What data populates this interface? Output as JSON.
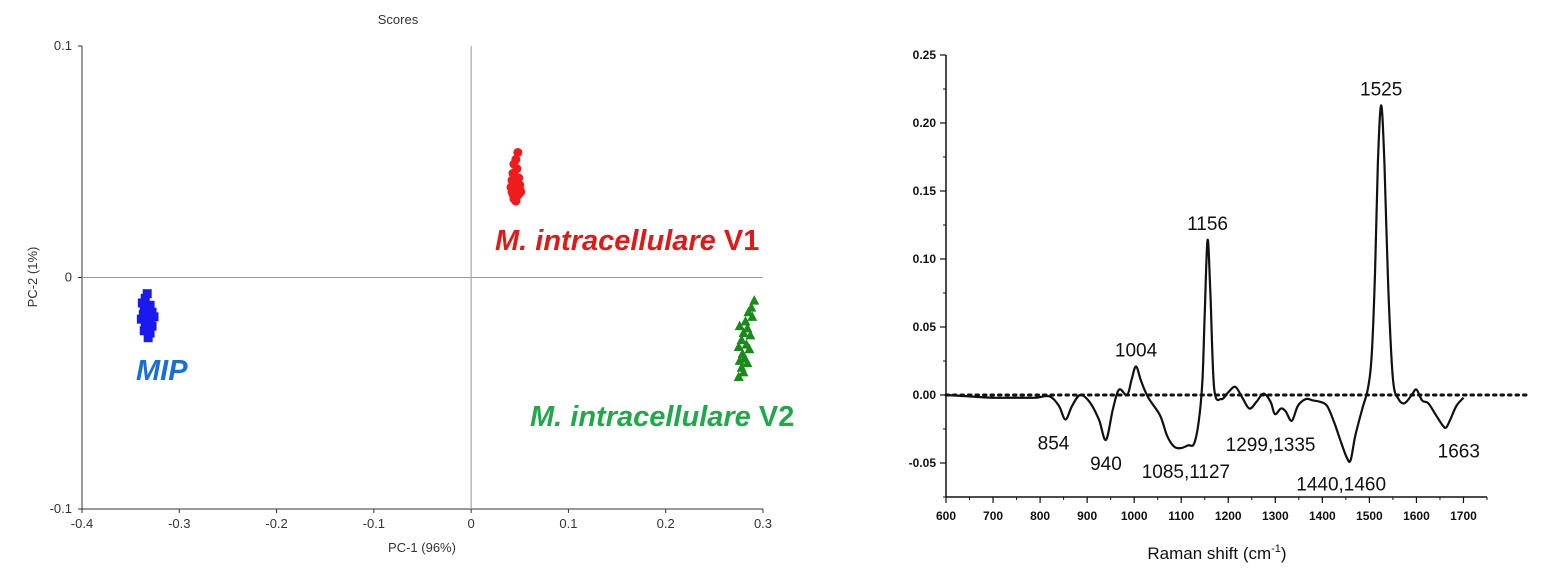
{
  "chart_data": [
    {
      "type": "scatter",
      "title": "Scores",
      "xlabel": "PC-1 (96%)",
      "ylabel": "PC-2 (1%)",
      "xlim": [
        -0.4,
        0.3
      ],
      "ylim": [
        -0.1,
        0.1
      ],
      "x_ticks": [
        -0.4,
        -0.3,
        -0.2,
        -0.1,
        0,
        0.1,
        0.2,
        0.3
      ],
      "x_tick_labels": [
        "-0.4",
        "-0.3",
        "-0.2",
        "-0.1",
        "0",
        "0.1",
        "0.2",
        "0.3"
      ],
      "y_ticks": [
        0.1,
        0,
        -0.1
      ],
      "y_tick_labels": [
        "0.1",
        "0",
        "-0.1"
      ],
      "grid": false,
      "series": [
        {
          "label_text": "M. intracellulare",
          "label_suffix": " V1",
          "color": "#ee1c1c",
          "marker": "circle",
          "points": [
            [
              0.048,
              0.054
            ],
            [
              0.046,
              0.051
            ],
            [
              0.044,
              0.049
            ],
            [
              0.047,
              0.047
            ],
            [
              0.043,
              0.045
            ],
            [
              0.045,
              0.044
            ],
            [
              0.049,
              0.043
            ],
            [
              0.042,
              0.042
            ],
            [
              0.046,
              0.041
            ],
            [
              0.05,
              0.04
            ],
            [
              0.044,
              0.039
            ],
            [
              0.041,
              0.039
            ],
            [
              0.048,
              0.038
            ],
            [
              0.045,
              0.037
            ],
            [
              0.051,
              0.037
            ],
            [
              0.043,
              0.036
            ],
            [
              0.047,
              0.035
            ],
            [
              0.049,
              0.036
            ],
            [
              0.044,
              0.034
            ],
            [
              0.046,
              0.033
            ],
            [
              0.042,
              0.037
            ],
            [
              0.05,
              0.038
            ]
          ]
        },
        {
          "label_text": "MIP",
          "label_suffix": "",
          "color": "#1a1aee",
          "marker": "square",
          "points": [
            [
              -0.333,
              -0.007
            ],
            [
              -0.335,
              -0.009
            ],
            [
              -0.338,
              -0.011
            ],
            [
              -0.33,
              -0.012
            ],
            [
              -0.336,
              -0.013
            ],
            [
              -0.332,
              -0.014
            ],
            [
              -0.328,
              -0.015
            ],
            [
              -0.337,
              -0.016
            ],
            [
              -0.333,
              -0.017
            ],
            [
              -0.326,
              -0.017
            ],
            [
              -0.339,
              -0.018
            ],
            [
              -0.331,
              -0.019
            ],
            [
              -0.335,
              -0.02
            ],
            [
              -0.328,
              -0.021
            ],
            [
              -0.333,
              -0.022
            ],
            [
              -0.336,
              -0.023
            ],
            [
              -0.33,
              -0.024
            ],
            [
              -0.332,
              -0.026
            ]
          ]
        },
        {
          "label_text": "M. intracellulare",
          "label_suffix": " V2",
          "color": "#1a8a1a",
          "marker": "triangle",
          "points": [
            [
              0.291,
              -0.01
            ],
            [
              0.288,
              -0.013
            ],
            [
              0.285,
              -0.015
            ],
            [
              0.289,
              -0.017
            ],
            [
              0.282,
              -0.019
            ],
            [
              0.276,
              -0.021
            ],
            [
              0.284,
              -0.022
            ],
            [
              0.28,
              -0.024
            ],
            [
              0.287,
              -0.025
            ],
            [
              0.278,
              -0.027
            ],
            [
              0.283,
              -0.029
            ],
            [
              0.275,
              -0.03
            ],
            [
              0.286,
              -0.031
            ],
            [
              0.279,
              -0.033
            ],
            [
              0.281,
              -0.035
            ],
            [
              0.276,
              -0.036
            ],
            [
              0.284,
              -0.037
            ],
            [
              0.278,
              -0.039
            ],
            [
              0.28,
              -0.041
            ],
            [
              0.275,
              -0.043
            ]
          ]
        }
      ]
    },
    {
      "type": "line",
      "xlabel": "Raman shift (cm",
      "xlabel_sup": "-1",
      "xlabel_close": ")",
      "ylabel": "",
      "xlim": [
        600,
        1750
      ],
      "ylim": [
        -0.075,
        0.25
      ],
      "x_ticks": [
        600,
        700,
        800,
        900,
        1000,
        1100,
        1200,
        1300,
        1400,
        1500,
        1600,
        1700
      ],
      "x_tick_labels": [
        "600",
        "700",
        "800",
        "900",
        "1000",
        "1100",
        "1200",
        "1300",
        "1400",
        "1500",
        "1600",
        "1700"
      ],
      "y_ticks": [
        0.25,
        0.2,
        0.15,
        0.1,
        0.05,
        0,
        -0.05
      ],
      "y_tick_labels": [
        "0.25",
        "0.20",
        "0.15",
        "0.10",
        "0.05",
        "0.00",
        "-0.05"
      ],
      "grid": false,
      "baseline": 0,
      "baseline_style": "dotted",
      "spectrum": [
        [
          600,
          0.0
        ],
        [
          650,
          -0.001
        ],
        [
          700,
          -0.002
        ],
        [
          750,
          -0.002
        ],
        [
          790,
          -0.002
        ],
        [
          820,
          -0.001
        ],
        [
          840,
          -0.008
        ],
        [
          854,
          -0.018
        ],
        [
          868,
          -0.008
        ],
        [
          885,
          0.0
        ],
        [
          905,
          -0.005
        ],
        [
          925,
          -0.018
        ],
        [
          940,
          -0.033
        ],
        [
          955,
          -0.01
        ],
        [
          968,
          0.004
        ],
        [
          985,
          0.0
        ],
        [
          995,
          0.012
        ],
        [
          1004,
          0.021
        ],
        [
          1015,
          0.01
        ],
        [
          1030,
          -0.002
        ],
        [
          1055,
          -0.015
        ],
        [
          1070,
          -0.03
        ],
        [
          1085,
          -0.038
        ],
        [
          1100,
          -0.039
        ],
        [
          1115,
          -0.037
        ],
        [
          1127,
          -0.036
        ],
        [
          1137,
          -0.02
        ],
        [
          1145,
          0.01
        ],
        [
          1150,
          0.06
        ],
        [
          1156,
          0.114
        ],
        [
          1162,
          0.075
        ],
        [
          1170,
          0.005
        ],
        [
          1185,
          -0.003
        ],
        [
          1200,
          0.002
        ],
        [
          1215,
          0.006
        ],
        [
          1230,
          -0.002
        ],
        [
          1245,
          -0.01
        ],
        [
          1260,
          -0.005
        ],
        [
          1275,
          0.001
        ],
        [
          1290,
          -0.005
        ],
        [
          1299,
          -0.014
        ],
        [
          1312,
          -0.01
        ],
        [
          1322,
          -0.012
        ],
        [
          1335,
          -0.019
        ],
        [
          1348,
          -0.008
        ],
        [
          1365,
          -0.003
        ],
        [
          1380,
          -0.004
        ],
        [
          1395,
          -0.005
        ],
        [
          1410,
          -0.008
        ],
        [
          1425,
          -0.02
        ],
        [
          1440,
          -0.035
        ],
        [
          1452,
          -0.046
        ],
        [
          1460,
          -0.048
        ],
        [
          1470,
          -0.03
        ],
        [
          1485,
          -0.01
        ],
        [
          1497,
          0.005
        ],
        [
          1505,
          0.03
        ],
        [
          1512,
          0.09
        ],
        [
          1518,
          0.17
        ],
        [
          1525,
          0.213
        ],
        [
          1532,
          0.17
        ],
        [
          1540,
          0.08
        ],
        [
          1550,
          0.012
        ],
        [
          1562,
          -0.003
        ],
        [
          1575,
          -0.006
        ],
        [
          1590,
          0.0
        ],
        [
          1600,
          0.004
        ],
        [
          1612,
          -0.004
        ],
        [
          1625,
          -0.006
        ],
        [
          1640,
          -0.014
        ],
        [
          1655,
          -0.022
        ],
        [
          1663,
          -0.024
        ],
        [
          1672,
          -0.018
        ],
        [
          1685,
          -0.008
        ],
        [
          1700,
          -0.002
        ]
      ],
      "annotations": [
        {
          "text": "1525",
          "x": 1525,
          "y": 0.213,
          "pos": "above"
        },
        {
          "text": "1156",
          "x": 1156,
          "y": 0.114,
          "pos": "above"
        },
        {
          "text": "1004",
          "x": 1004,
          "y": 0.021,
          "pos": "above"
        },
        {
          "text": "854",
          "x": 854,
          "y": -0.018,
          "pos": "below-left"
        },
        {
          "text": "940",
          "x": 940,
          "y": -0.033,
          "pos": "below"
        },
        {
          "text": "1085,1127",
          "x": 1110,
          "y": -0.039,
          "pos": "below"
        },
        {
          "text": "1299,1335",
          "x": 1290,
          "y": -0.019,
          "pos": "below"
        },
        {
          "text": "1440,1460",
          "x": 1440,
          "y": -0.048,
          "pos": "below"
        },
        {
          "text": "1663",
          "x": 1690,
          "y": -0.024,
          "pos": "below"
        }
      ]
    }
  ]
}
